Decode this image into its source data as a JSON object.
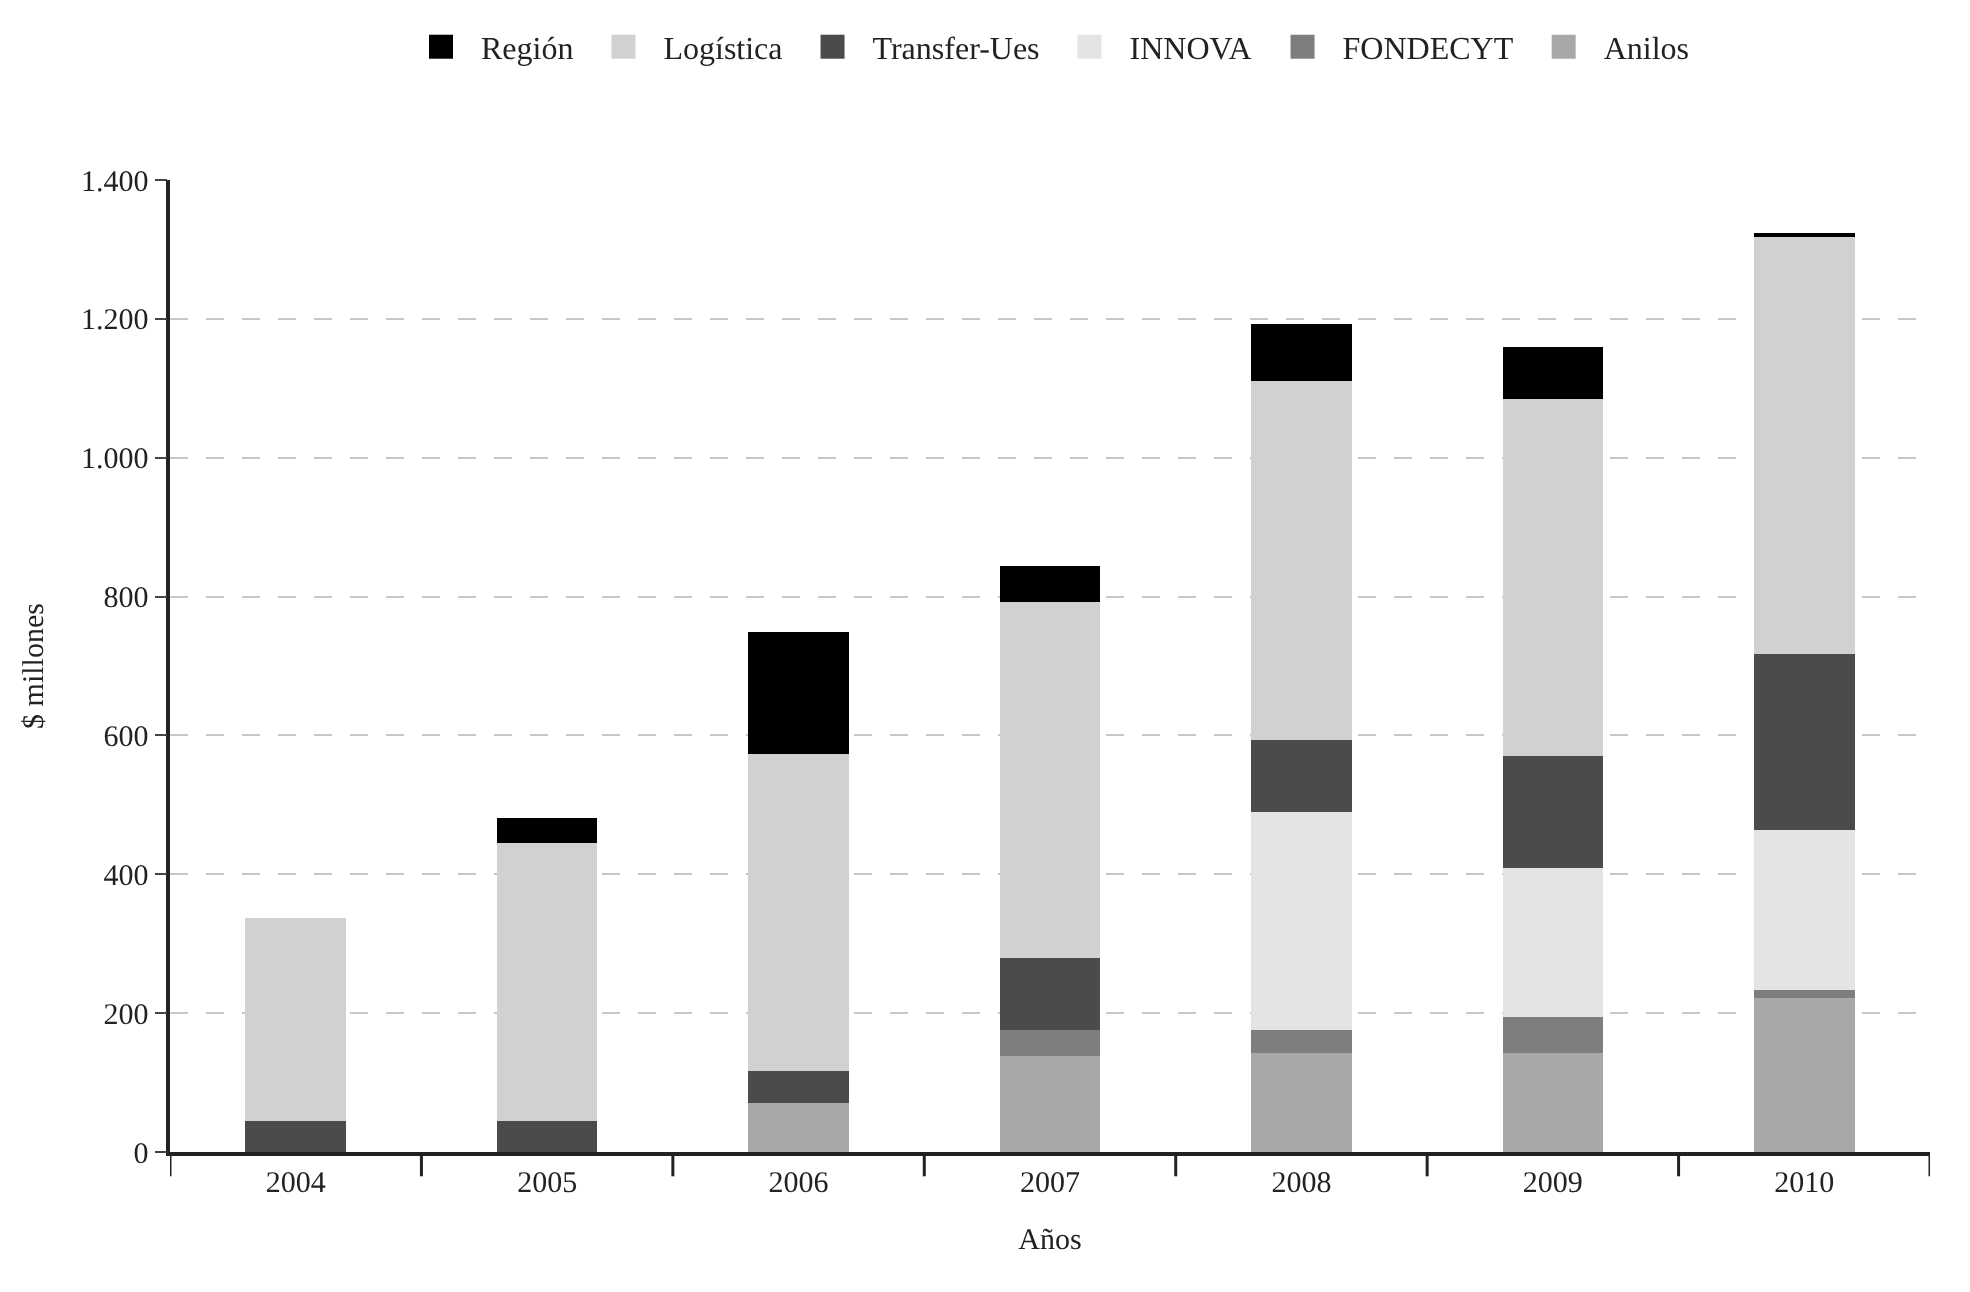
{
  "chart_data": {
    "type": "bar",
    "stacked": true,
    "xlabel": "Años",
    "ylabel": "$ millones",
    "categories": [
      "2004",
      "2005",
      "2006",
      "2007",
      "2008",
      "2009",
      "2010"
    ],
    "series": [
      {
        "name": "Anilos",
        "color": "#a7a8aa",
        "values": [
          null,
          null,
          71,
          139,
          142,
          142,
          222
        ]
      },
      {
        "name": "FONDECYT",
        "color": "#7d7e80",
        "values": [
          null,
          null,
          null,
          37,
          34,
          52,
          12
        ]
      },
      {
        "name": "INNOVA",
        "color": "#e3e4e3",
        "values": [
          null,
          null,
          null,
          null,
          314,
          215,
          230
        ]
      },
      {
        "name": "Transfer-Ues",
        "color": "#4b4b4d",
        "values": [
          44,
          44,
          45,
          104,
          103,
          161,
          253
        ]
      },
      {
        "name": "Logística",
        "color": "#d0d1d3",
        "values": [
          293,
          401,
          457,
          512,
          518,
          515,
          601
        ]
      },
      {
        "name": "Región",
        "color": "#000000",
        "values": [
          null,
          36,
          176,
          52,
          81,
          75,
          6
        ]
      }
    ],
    "ylim": [
      0,
      1400
    ],
    "yticks": [
      0,
      200,
      400,
      600,
      800,
      {
        "value": 1000,
        "label": "1.000"
      },
      {
        "value": 1200,
        "label": "1.200"
      },
      {
        "value": 1400,
        "label": "1.400"
      }
    ],
    "grid": "y",
    "legend": "top"
  }
}
